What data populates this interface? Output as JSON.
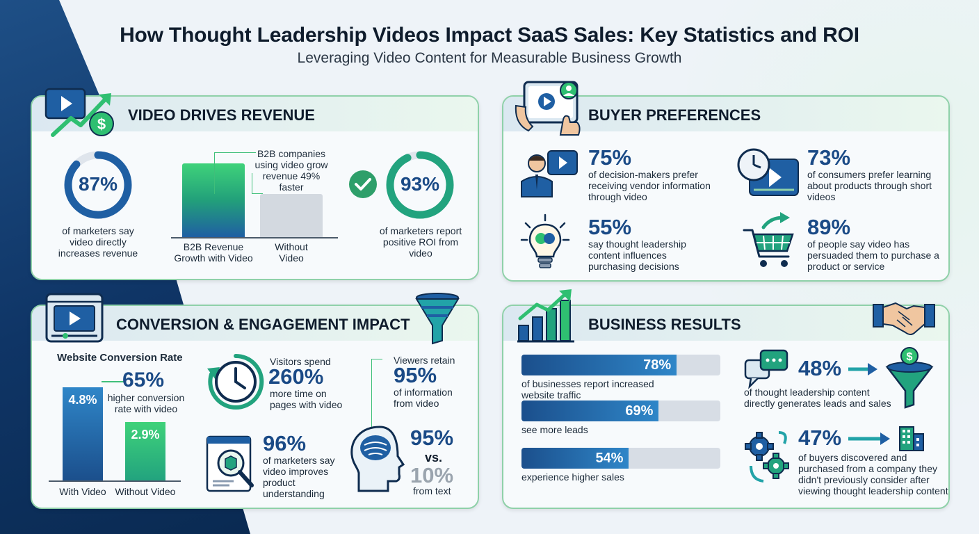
{
  "title": "How Thought Leadership Videos Impact SaaS Sales: Key Statistics and ROI",
  "subtitle": "Leveraging Video Content for Measurable Business Growth",
  "revenue": {
    "heading": "VIDEO DRIVES REVENUE",
    "stat1": {
      "value": "87%",
      "fraction": 0.87,
      "text": "of marketers say video directly increases revenue"
    },
    "bars": {
      "annotation": "B2B companies using video grow revenue 49% faster",
      "left_label": "B2B Revenue Growth with Video",
      "right_label": "Without Video"
    },
    "stat2": {
      "value": "93%",
      "fraction": 0.93,
      "text": "of marketers report positive ROI from video"
    }
  },
  "buyer": {
    "heading": "BUYER PREFERENCES",
    "items": [
      {
        "value": "75%",
        "text": "of decision-makers prefer receiving vendor information through video",
        "icon": "presenter-video-icon"
      },
      {
        "value": "73%",
        "text": "of consumers prefer learning about products through short videos",
        "icon": "clock-video-icon"
      },
      {
        "value": "55%",
        "text": "say thought leadership content influences purchasing decisions",
        "icon": "brain-bulb-icon"
      },
      {
        "value": "89%",
        "text": "of people say video has persuaded them to purchase a product or service",
        "icon": "shopping-cart-icon"
      }
    ]
  },
  "conversion": {
    "heading": "CONVERSION & ENGAGEMENT IMPACT",
    "chart_title": "Website Conversion Rate",
    "chart_data": {
      "type": "bar",
      "title": "Website Conversion Rate",
      "categories": [
        "With Video",
        "Without Video"
      ],
      "values": [
        4.8,
        2.9
      ],
      "value_labels": [
        "4.8%",
        "2.9%"
      ]
    },
    "callout_value": "65%",
    "callout_text": "higher conversion rate with video",
    "time": {
      "prefix": "Visitors spend",
      "value": "260%",
      "text": "more time on pages with video"
    },
    "understand": {
      "value": "96%",
      "text": "of marketers say video improves product understanding"
    },
    "retain": {
      "prefix": "Viewers retain",
      "value": "95%",
      "text": "of information from video"
    },
    "compare": {
      "value": "95%",
      "vs": "vs.",
      "value2": "10%",
      "text": "from text"
    }
  },
  "results": {
    "heading": "BUSINESS RESULTS",
    "bars": [
      {
        "value": "78%",
        "fraction": 0.78,
        "text": "of businesses report increased website traffic"
      },
      {
        "value": "69%",
        "fraction": 0.69,
        "text": "see more leads"
      },
      {
        "value": "54%",
        "fraction": 0.54,
        "text": "experience higher sales"
      }
    ],
    "leads": {
      "value": "48%",
      "text": "of thought leadership content directly generates leads and sales"
    },
    "buyers": {
      "value": "47%",
      "text": "of buyers discovered and purchased from a company they didn't previously consider after viewing thought leadership content"
    }
  },
  "colors": {
    "navy": "#1a4a86",
    "green": "#2fbf71",
    "teal": "#22a3a8",
    "border": "#8fd1a9"
  }
}
